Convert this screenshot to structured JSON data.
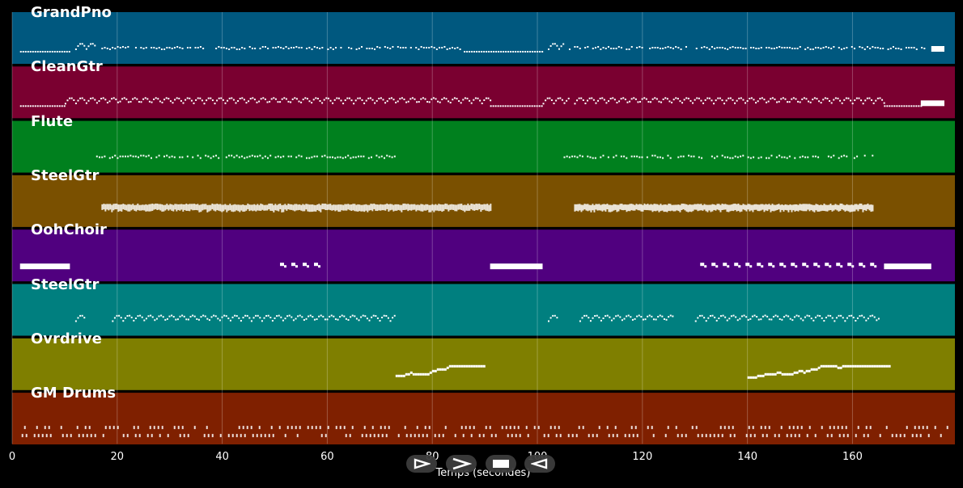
{
  "chart_data": {
    "type": "piano-roll",
    "xlabel": "Temps (secondes)",
    "xlim": [
      0,
      179.5
    ],
    "x_ticks": [
      0,
      20,
      40,
      60,
      80,
      100,
      120,
      140,
      160
    ],
    "grid": true,
    "tracks": [
      {
        "name": "GrandPno",
        "color": "#00587f",
        "segments": [
          {
            "start": 1.5,
            "end": 11,
            "style": "line"
          },
          {
            "start": 12,
            "end": 16,
            "style": "arp"
          },
          {
            "start": 17,
            "end": 59,
            "style": "sparse"
          },
          {
            "start": 60,
            "end": 86,
            "style": "sparse"
          },
          {
            "start": 86,
            "end": 101,
            "style": "line"
          },
          {
            "start": 102,
            "end": 105,
            "style": "arp"
          },
          {
            "start": 106,
            "end": 174,
            "style": "sparse"
          },
          {
            "start": 175,
            "end": 177.5,
            "style": "sustain"
          }
        ]
      },
      {
        "name": "CleanGtr",
        "color": "#7a0030",
        "segments": [
          {
            "start": 1.5,
            "end": 10,
            "style": "line"
          },
          {
            "start": 10,
            "end": 91,
            "style": "arp"
          },
          {
            "start": 91,
            "end": 101,
            "style": "line"
          },
          {
            "start": 101,
            "end": 106,
            "style": "arp"
          },
          {
            "start": 107,
            "end": 166,
            "style": "arp"
          },
          {
            "start": 166,
            "end": 173,
            "style": "line"
          },
          {
            "start": 173,
            "end": 177.5,
            "style": "sustain"
          }
        ]
      },
      {
        "name": "Flute",
        "color": "#00801e",
        "segments": [
          {
            "start": 15.5,
            "end": 73,
            "style": "sparse"
          },
          {
            "start": 105,
            "end": 164,
            "style": "sparse"
          }
        ]
      },
      {
        "name": "SteelGtr",
        "color": "#7a5000",
        "segments": [
          {
            "start": 17,
            "end": 91,
            "style": "dense"
          },
          {
            "start": 107,
            "end": 164,
            "style": "dense"
          }
        ]
      },
      {
        "name": "OohChoir",
        "color": "#50007f",
        "segments": [
          {
            "start": 1.5,
            "end": 11,
            "style": "sustain"
          },
          {
            "start": 51,
            "end": 58,
            "style": "short"
          },
          {
            "start": 91,
            "end": 101,
            "style": "sustain"
          },
          {
            "start": 131,
            "end": 164,
            "style": "short"
          },
          {
            "start": 166,
            "end": 175,
            "style": "sustain"
          }
        ]
      },
      {
        "name": "SteelGtr",
        "color": "#007f7f",
        "segments": [
          {
            "start": 12,
            "end": 14,
            "style": "arp"
          },
          {
            "start": 19,
            "end": 73,
            "style": "arp"
          },
          {
            "start": 102,
            "end": 104,
            "style": "arp"
          },
          {
            "start": 108,
            "end": 126,
            "style": "arp"
          },
          {
            "start": 130,
            "end": 165,
            "style": "arp"
          }
        ]
      },
      {
        "name": "Ovrdrive",
        "color": "#7f7f00",
        "segments": [
          {
            "start": 73,
            "end": 90,
            "style": "rise"
          },
          {
            "start": 140,
            "end": 167,
            "style": "rise"
          }
        ]
      },
      {
        "name": "GM Drums",
        "color": "#7f2000",
        "segments": [
          {
            "start": 1.5,
            "end": 178.5,
            "style": "drums"
          }
        ]
      }
    ]
  },
  "transport": {
    "icons": [
      "play-outline-icon",
      "next-chevron-icon",
      "stop-icon",
      "back-outline-icon"
    ]
  }
}
